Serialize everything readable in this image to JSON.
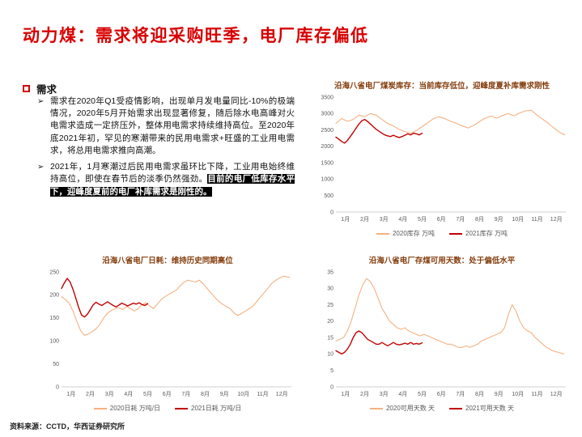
{
  "slide": {
    "title": "动力煤：需求将迎采购旺季，电厂库存偏低",
    "footer": "资料来源：CCTD，华西证券研究所"
  },
  "colors": {
    "accent_red": "#d80000",
    "chart_title": "#843c0c",
    "series_2020": "#f4b183",
    "series_2021": "#c00000",
    "highlight_bg": "#000000",
    "highlight_fg": "#ffffff"
  },
  "demand_section": {
    "heading": "需求",
    "bullets": [
      {
        "marker": "➢",
        "text": "需求在2020年Q1受疫情影响，出现单月发电量同比-10%的极端情况，2020年5月开始需求出现显著修复，随后除水电高峰对火电需求造成一定挤压外，整体用电需求持续维持高位。至2020年底2021年初，罕见的寒潮带来的民用电需求+旺盛的工业用电需求，将总用电需求推向高潮。",
        "highlight": ""
      },
      {
        "marker": "➢",
        "text": "2021年，1月寒潮过后民用电需求虽环比下降，工业用电始终维持高位，即使在春节后的淡季仍然强劲。",
        "highlight": "目前的电厂低库存水平下，迎峰度夏前的电厂补库需求是刚性的。"
      }
    ]
  },
  "chart_data": [
    {
      "id": "coal-inventory",
      "type": "line",
      "title": "沿海八省电厂煤炭库存：当前库存低位，迎峰度夏补库需求刚性",
      "xlim": [
        1,
        13
      ],
      "ylim": [
        0,
        3500
      ],
      "yticks": [
        0,
        500,
        1000,
        1500,
        2000,
        2500,
        3000,
        3500
      ],
      "xticks": [
        "1月",
        "2月",
        "3月",
        "4月",
        "5月",
        "6月",
        "7月",
        "8月",
        "9月",
        "10月",
        "11月",
        "12月"
      ],
      "legend_position": "bottom",
      "grid": false,
      "series": [
        {
          "name": "2020库存 万吨",
          "color": "#f4b183",
          "width": 1.1,
          "x": [
            1.0,
            1.3,
            1.6,
            1.9,
            2.2,
            2.5,
            2.8,
            3.1,
            3.4,
            3.7,
            4.0,
            4.3,
            4.6,
            4.9,
            5.2,
            5.5,
            5.8,
            6.1,
            6.4,
            6.7,
            7.0,
            7.3,
            7.6,
            7.9,
            8.2,
            8.5,
            8.8,
            9.1,
            9.4,
            9.7,
            10.0,
            10.3,
            10.6,
            10.9,
            11.2,
            11.5,
            11.8,
            12.1,
            12.4,
            12.7,
            12.95
          ],
          "y": [
            2700,
            2850,
            2760,
            2820,
            2950,
            2900,
            3000,
            2950,
            2820,
            2700,
            2620,
            2520,
            2450,
            2400,
            2480,
            2600,
            2720,
            2850,
            2900,
            2840,
            2760,
            2700,
            2620,
            2560,
            2640,
            2760,
            2860,
            2920,
            2860,
            2940,
            3000,
            2930,
            3020,
            3080,
            3100,
            2950,
            2820,
            2700,
            2550,
            2420,
            2350
          ]
        },
        {
          "name": "2021库存 万吨",
          "color": "#c00000",
          "width": 1.4,
          "x": [
            1.0,
            1.15,
            1.3,
            1.45,
            1.6,
            1.75,
            1.9,
            2.05,
            2.2,
            2.35,
            2.5,
            2.65,
            2.8,
            2.95,
            3.1,
            3.25,
            3.4,
            3.55,
            3.7,
            3.85,
            4.0,
            4.15,
            4.3,
            4.45,
            4.6,
            4.75,
            4.9,
            5.05,
            5.2,
            5.35,
            5.5
          ],
          "y": [
            2280,
            2220,
            2150,
            2100,
            2180,
            2300,
            2420,
            2550,
            2680,
            2780,
            2820,
            2760,
            2680,
            2600,
            2520,
            2460,
            2400,
            2350,
            2320,
            2300,
            2340,
            2300,
            2270,
            2300,
            2340,
            2380,
            2350,
            2400,
            2380,
            2350,
            2400
          ]
        }
      ]
    },
    {
      "id": "daily-consumption",
      "type": "line",
      "title": "沿海八省电厂日耗：维持历史同期高位",
      "xlim": [
        1,
        13
      ],
      "ylim": [
        0,
        250
      ],
      "yticks": [
        0,
        50,
        100,
        150,
        200,
        250
      ],
      "xticks": [
        "1月",
        "2月",
        "3月",
        "4月",
        "5月",
        "6月",
        "7月",
        "8月",
        "9月",
        "10月",
        "11月",
        "12月"
      ],
      "legend_position": "bottom",
      "grid": false,
      "series": [
        {
          "name": "2020日耗 万吨/日",
          "color": "#f4b183",
          "width": 1.1,
          "x": [
            1.0,
            1.2,
            1.4,
            1.6,
            1.8,
            2.0,
            2.2,
            2.4,
            2.6,
            2.8,
            3.0,
            3.2,
            3.4,
            3.6,
            3.8,
            4.0,
            4.2,
            4.4,
            4.6,
            4.8,
            5.0,
            5.2,
            5.4,
            5.6,
            5.8,
            6.0,
            6.2,
            6.4,
            6.6,
            6.8,
            7.0,
            7.2,
            7.4,
            7.6,
            7.8,
            8.0,
            8.2,
            8.4,
            8.6,
            8.8,
            9.0,
            9.2,
            9.4,
            9.6,
            9.8,
            10.0,
            10.2,
            10.4,
            10.6,
            10.8,
            11.0,
            11.2,
            11.4,
            11.6,
            11.8,
            12.0,
            12.3,
            12.6,
            12.9
          ],
          "y": [
            196,
            190,
            182,
            165,
            142,
            122,
            112,
            115,
            120,
            126,
            136,
            150,
            160,
            166,
            170,
            172,
            168,
            175,
            170,
            165,
            170,
            178,
            183,
            176,
            170,
            180,
            190,
            196,
            201,
            206,
            211,
            220,
            228,
            232,
            230,
            228,
            232,
            224,
            214,
            204,
            195,
            186,
            180,
            175,
            170,
            161,
            155,
            160,
            165,
            170,
            176,
            186,
            196,
            206,
            216,
            226,
            235,
            241,
            238
          ]
        },
        {
          "name": "2021日耗 万吨/日",
          "color": "#c00000",
          "width": 1.4,
          "x": [
            1.0,
            1.15,
            1.3,
            1.45,
            1.6,
            1.75,
            1.9,
            2.05,
            2.2,
            2.35,
            2.5,
            2.65,
            2.8,
            2.95,
            3.1,
            3.25,
            3.4,
            3.55,
            3.7,
            3.85,
            4.0,
            4.15,
            4.3,
            4.45,
            4.6,
            4.75,
            4.9,
            5.05,
            5.2,
            5.35,
            5.5
          ],
          "y": [
            214,
            226,
            236,
            228,
            212,
            192,
            172,
            156,
            152,
            158,
            168,
            178,
            184,
            180,
            177,
            181,
            185,
            181,
            177,
            174,
            178,
            182,
            179,
            176,
            179,
            182,
            180,
            183,
            179,
            177,
            181
          ]
        }
      ]
    },
    {
      "id": "available-days",
      "type": "line",
      "title": "沿海八省电厂存煤可用天数：处于偏低水平",
      "xlim": [
        1,
        13
      ],
      "ylim": [
        0,
        35
      ],
      "yticks": [
        0,
        5,
        10,
        15,
        20,
        25,
        30,
        35
      ],
      "xticks": [
        "1月",
        "2月",
        "3月",
        "4月",
        "5月",
        "6月",
        "7月",
        "8月",
        "9月",
        "10月",
        "11月",
        "12月"
      ],
      "legend_position": "bottom",
      "grid": false,
      "series": [
        {
          "name": "2020可用天数 天",
          "color": "#f4b183",
          "width": 1.1,
          "x": [
            1.0,
            1.2,
            1.4,
            1.6,
            1.8,
            2.0,
            2.2,
            2.4,
            2.6,
            2.8,
            3.0,
            3.2,
            3.4,
            3.6,
            3.8,
            4.0,
            4.2,
            4.4,
            4.6,
            4.8,
            5.0,
            5.2,
            5.4,
            5.6,
            5.8,
            6.0,
            6.2,
            6.4,
            6.6,
            6.8,
            7.0,
            7.2,
            7.4,
            7.6,
            7.8,
            8.0,
            8.2,
            8.4,
            8.6,
            8.8,
            9.0,
            9.2,
            9.4,
            9.6,
            9.8,
            10.0,
            10.2,
            10.4,
            10.6,
            10.8,
            11.0,
            11.2,
            11.4,
            11.6,
            11.8,
            12.0,
            12.3,
            12.6,
            12.9
          ],
          "y": [
            14,
            14.5,
            15,
            17,
            20,
            24,
            28,
            31,
            33,
            32,
            30,
            27,
            24,
            22,
            20,
            19,
            18,
            17.5,
            18,
            17,
            16.5,
            16,
            15.5,
            16,
            15.5,
            15,
            14.5,
            14,
            13.5,
            13,
            13,
            12.5,
            12,
            12,
            12.5,
            12,
            12.5,
            13,
            14,
            14.5,
            15,
            15.5,
            16,
            16.5,
            18,
            22,
            25,
            23,
            20,
            18,
            17,
            16.5,
            15,
            14,
            13,
            12,
            11,
            10.5,
            10
          ]
        },
        {
          "name": "2021可用天数 天",
          "color": "#c00000",
          "width": 1.4,
          "x": [
            1.0,
            1.15,
            1.3,
            1.45,
            1.6,
            1.75,
            1.9,
            2.05,
            2.2,
            2.35,
            2.5,
            2.65,
            2.8,
            2.95,
            3.1,
            3.25,
            3.4,
            3.55,
            3.7,
            3.85,
            4.0,
            4.15,
            4.3,
            4.45,
            4.6,
            4.75,
            4.9,
            5.05,
            5.2,
            5.35,
            5.5
          ],
          "y": [
            11,
            10.5,
            10,
            10.5,
            11.5,
            13,
            15,
            16.5,
            17,
            16.5,
            15.5,
            14.5,
            14,
            13.5,
            13,
            13,
            13.5,
            13,
            12.5,
            13,
            13.5,
            13,
            12.8,
            13,
            13.3,
            13,
            13.5,
            13,
            13.2,
            13,
            13.4
          ]
        }
      ]
    }
  ]
}
